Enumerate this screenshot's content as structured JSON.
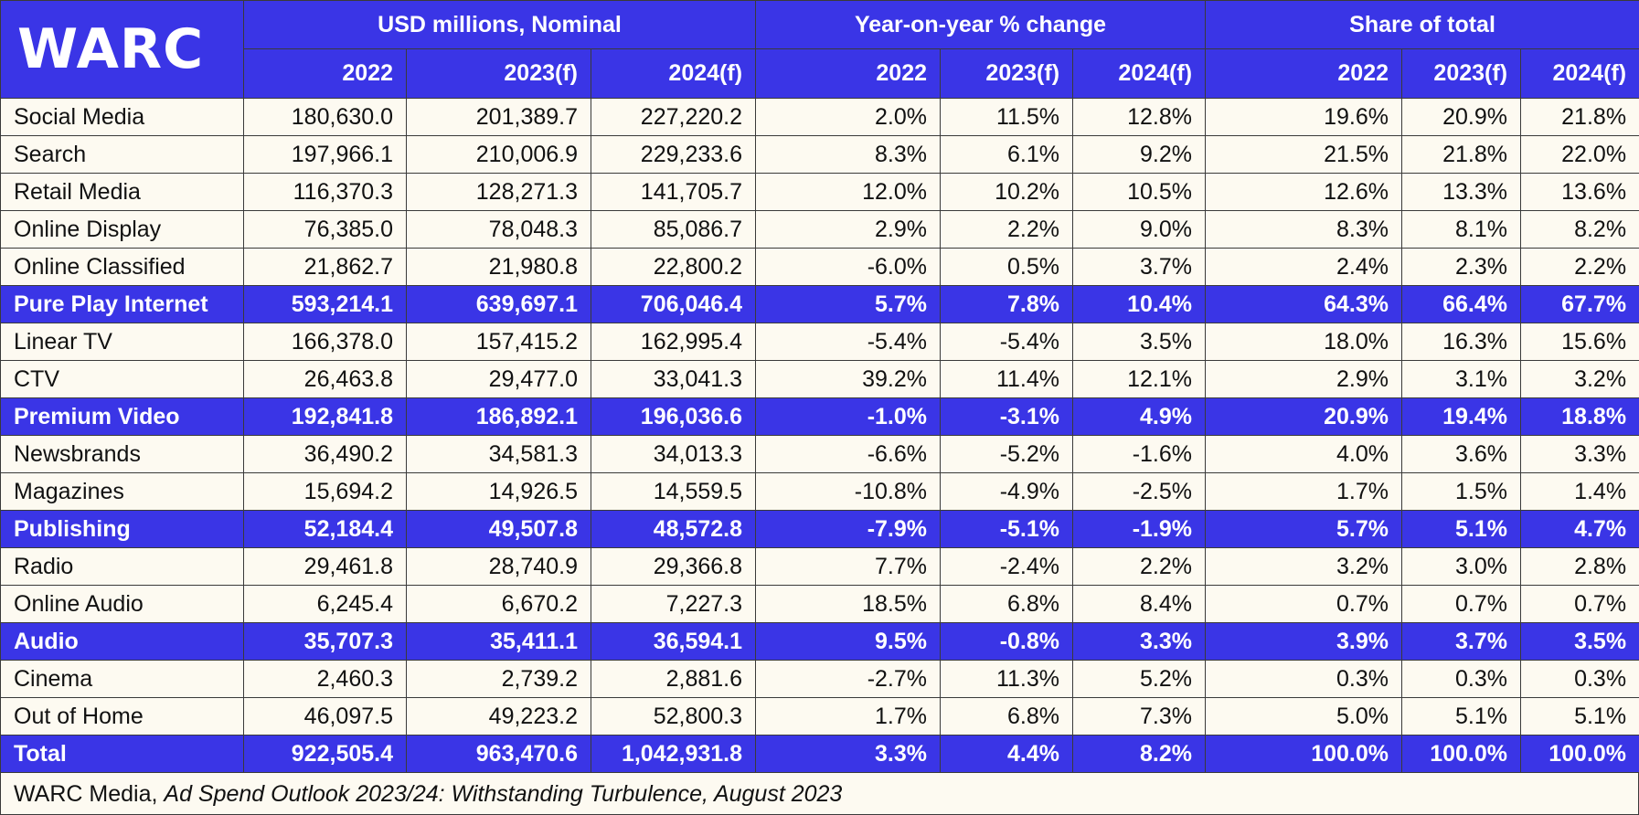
{
  "logo": "WARC",
  "group_headers": [
    "USD millions, Nominal",
    "Year-on-year % change",
    "Share of total"
  ],
  "year_headers": [
    "2022",
    "2023(f)",
    "2024(f)",
    "2022",
    "2023(f)",
    "2024(f)",
    "2022",
    "2023(f)",
    "2024(f)"
  ],
  "colors": {
    "header_blue": "#3a35e6",
    "background": "#fdfaf1",
    "text": "#111111"
  },
  "rows": [
    {
      "label": "Social Media",
      "subtotal": false,
      "values": [
        "180,630.0",
        "201,389.7",
        "227,220.2",
        "2.0%",
        "11.5%",
        "12.8%",
        "19.6%",
        "20.9%",
        "21.8%"
      ]
    },
    {
      "label": "Search",
      "subtotal": false,
      "values": [
        "197,966.1",
        "210,006.9",
        "229,233.6",
        "8.3%",
        "6.1%",
        "9.2%",
        "21.5%",
        "21.8%",
        "22.0%"
      ]
    },
    {
      "label": "Retail Media",
      "subtotal": false,
      "values": [
        "116,370.3",
        "128,271.3",
        "141,705.7",
        "12.0%",
        "10.2%",
        "10.5%",
        "12.6%",
        "13.3%",
        "13.6%"
      ]
    },
    {
      "label": "Online Display",
      "subtotal": false,
      "values": [
        "76,385.0",
        "78,048.3",
        "85,086.7",
        "2.9%",
        "2.2%",
        "9.0%",
        "8.3%",
        "8.1%",
        "8.2%"
      ]
    },
    {
      "label": "Online Classified",
      "subtotal": false,
      "values": [
        "21,862.7",
        "21,980.8",
        "22,800.2",
        "-6.0%",
        "0.5%",
        "3.7%",
        "2.4%",
        "2.3%",
        "2.2%"
      ]
    },
    {
      "label": "Pure Play Internet",
      "subtotal": true,
      "values": [
        "593,214.1",
        "639,697.1",
        "706,046.4",
        "5.7%",
        "7.8%",
        "10.4%",
        "64.3%",
        "66.4%",
        "67.7%"
      ]
    },
    {
      "label": "Linear TV",
      "subtotal": false,
      "values": [
        "166,378.0",
        "157,415.2",
        "162,995.4",
        "-5.4%",
        "-5.4%",
        "3.5%",
        "18.0%",
        "16.3%",
        "15.6%"
      ]
    },
    {
      "label": "CTV",
      "subtotal": false,
      "values": [
        "26,463.8",
        "29,477.0",
        "33,041.3",
        "39.2%",
        "11.4%",
        "12.1%",
        "2.9%",
        "3.1%",
        "3.2%"
      ]
    },
    {
      "label": "Premium Video",
      "subtotal": true,
      "values": [
        "192,841.8",
        "186,892.1",
        "196,036.6",
        "-1.0%",
        "-3.1%",
        "4.9%",
        "20.9%",
        "19.4%",
        "18.8%"
      ]
    },
    {
      "label": "Newsbrands",
      "subtotal": false,
      "values": [
        "36,490.2",
        "34,581.3",
        "34,013.3",
        "-6.6%",
        "-5.2%",
        "-1.6%",
        "4.0%",
        "3.6%",
        "3.3%"
      ]
    },
    {
      "label": "Magazines",
      "subtotal": false,
      "values": [
        "15,694.2",
        "14,926.5",
        "14,559.5",
        "-10.8%",
        "-4.9%",
        "-2.5%",
        "1.7%",
        "1.5%",
        "1.4%"
      ]
    },
    {
      "label": "Publishing",
      "subtotal": true,
      "values": [
        "52,184.4",
        "49,507.8",
        "48,572.8",
        "-7.9%",
        "-5.1%",
        "-1.9%",
        "5.7%",
        "5.1%",
        "4.7%"
      ]
    },
    {
      "label": "Radio",
      "subtotal": false,
      "values": [
        "29,461.8",
        "28,740.9",
        "29,366.8",
        "7.7%",
        "-2.4%",
        "2.2%",
        "3.2%",
        "3.0%",
        "2.8%"
      ]
    },
    {
      "label": "Online Audio",
      "subtotal": false,
      "values": [
        "6,245.4",
        "6,670.2",
        "7,227.3",
        "18.5%",
        "6.8%",
        "8.4%",
        "0.7%",
        "0.7%",
        "0.7%"
      ]
    },
    {
      "label": "Audio",
      "subtotal": true,
      "values": [
        "35,707.3",
        "35,411.1",
        "36,594.1",
        "9.5%",
        "-0.8%",
        "3.3%",
        "3.9%",
        "3.7%",
        "3.5%"
      ]
    },
    {
      "label": "Cinema",
      "subtotal": false,
      "values": [
        "2,460.3",
        "2,739.2",
        "2,881.6",
        "-2.7%",
        "11.3%",
        "5.2%",
        "0.3%",
        "0.3%",
        "0.3%"
      ]
    },
    {
      "label": "Out of Home",
      "subtotal": false,
      "values": [
        "46,097.5",
        "49,223.2",
        "52,800.3",
        "1.7%",
        "6.8%",
        "7.3%",
        "5.0%",
        "5.1%",
        "5.1%"
      ]
    },
    {
      "label": "Total",
      "subtotal": true,
      "values": [
        "922,505.4",
        "963,470.6",
        "1,042,931.8",
        "3.3%",
        "4.4%",
        "8.2%",
        "100.0%",
        "100.0%",
        "100.0%"
      ]
    }
  ],
  "source": {
    "prefix": "WARC Media,",
    "title": "Ad Spend Outlook 2023/24: Withstanding Turbulence, August 2023"
  }
}
